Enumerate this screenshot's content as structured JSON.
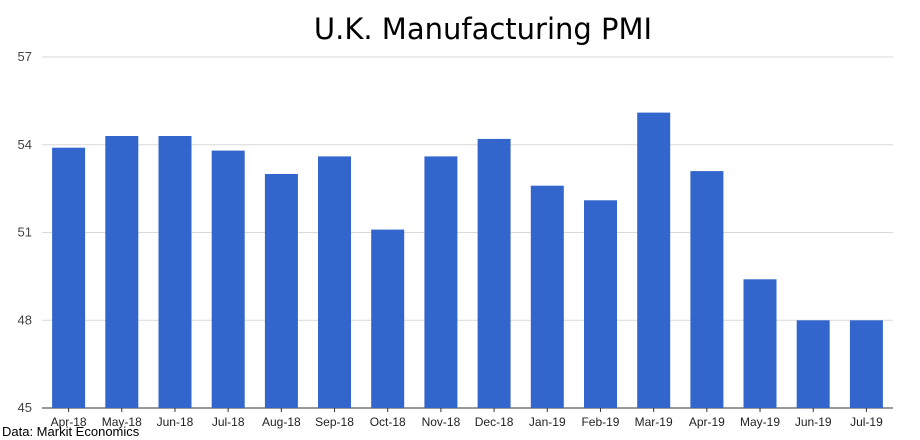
{
  "chart_data": {
    "type": "bar",
    "title": "U.K. Manufacturing PMI",
    "xlabel": "",
    "ylabel": "",
    "ylim": [
      45,
      57
    ],
    "yticks": [
      45,
      48,
      51,
      54,
      57
    ],
    "grid": true,
    "legend": "none",
    "bar_color": "#3366cc",
    "categories": [
      "Apr-18",
      "May-18",
      "Jun-18",
      "Jul-18",
      "Aug-18",
      "Sep-18",
      "Oct-18",
      "Nov-18",
      "Dec-18",
      "Jan-19",
      "Feb-19",
      "Mar-19",
      "Apr-19",
      "May-19",
      "Jun-19",
      "Jul-19"
    ],
    "values": [
      53.9,
      54.3,
      54.3,
      53.8,
      53.0,
      53.6,
      51.1,
      53.6,
      54.2,
      52.6,
      52.1,
      55.1,
      53.1,
      49.4,
      48.0,
      48.0
    ]
  },
  "source": "Data: Markit Economics"
}
